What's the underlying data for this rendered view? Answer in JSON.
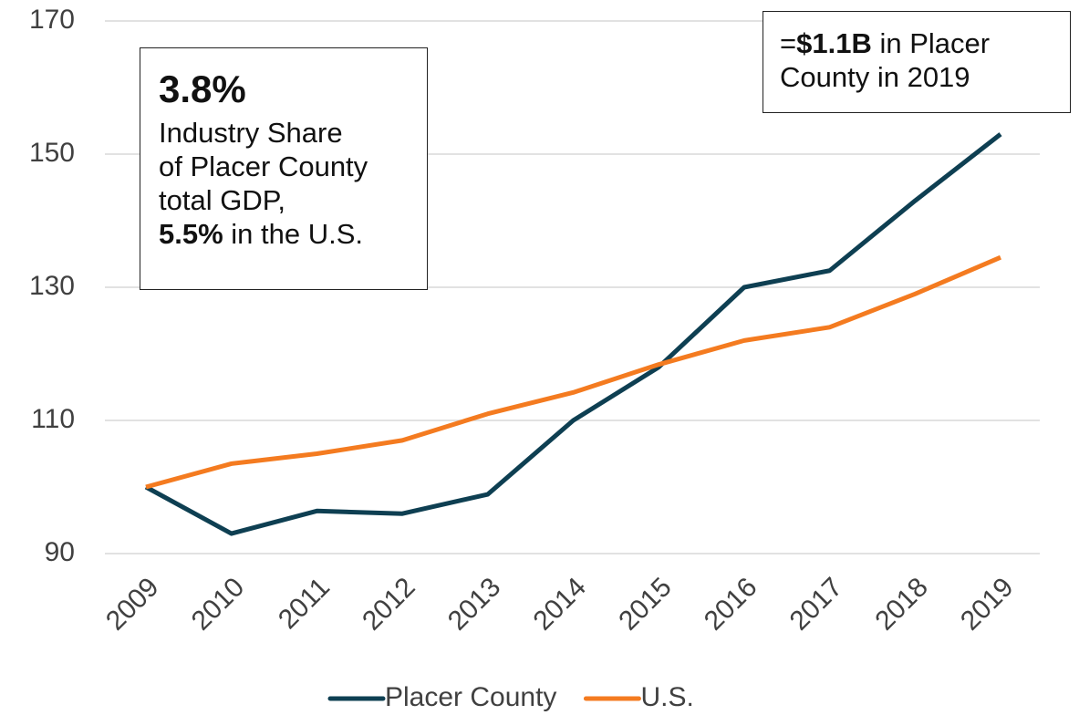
{
  "chart_data": {
    "type": "line",
    "categories": [
      "2009",
      "2010",
      "2011",
      "2012",
      "2013",
      "2014",
      "2015",
      "2016",
      "2017",
      "2018",
      "2019"
    ],
    "series": [
      {
        "name": "Placer County",
        "color": "#0e3f52",
        "values": [
          100,
          93,
          96.4,
          96,
          98.9,
          110,
          118,
          130,
          132.5,
          143,
          153
        ]
      },
      {
        "name": "U.S.",
        "color": "#f47b20",
        "values": [
          100,
          103.5,
          105,
          107,
          111,
          114.2,
          118.4,
          122,
          124,
          129,
          134.5
        ]
      }
    ],
    "ylim": [
      90,
      170
    ],
    "yticks": [
      90,
      110,
      130,
      150,
      170
    ],
    "grid": true,
    "legend": "bottom",
    "annotations": [
      {
        "lines": [
          [
            "3.8%"
          ],
          [
            "Industry Share"
          ],
          [
            "of Placer County"
          ],
          [
            "total GDP,"
          ],
          [
            "5.5%",
            " in the U.S."
          ]
        ]
      },
      {
        "lines": [
          [
            "=",
            "$1.1B",
            " in Placer"
          ],
          [
            "County in 2019"
          ]
        ]
      }
    ]
  }
}
